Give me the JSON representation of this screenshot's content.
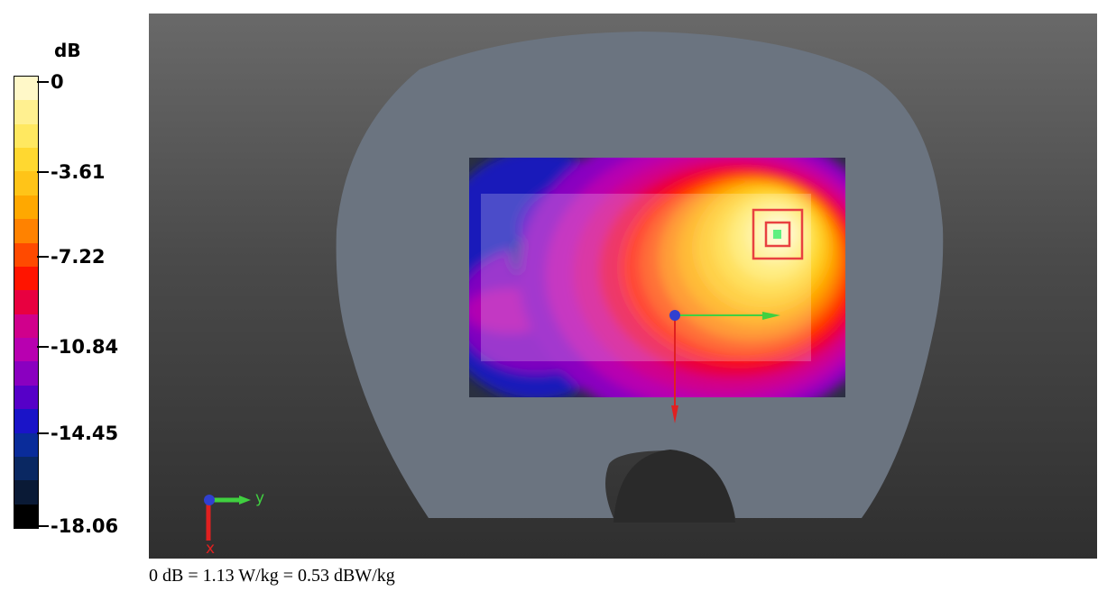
{
  "chart_data": {
    "type": "heatmap",
    "colorbar": {
      "unit": "dB",
      "ticks": [
        "0",
        "-3.61",
        "-7.22",
        "-10.84",
        "-14.45",
        "-18.06"
      ],
      "range": [
        -18.06,
        0
      ],
      "levels": [
        "#fff8c8",
        "#fff090",
        "#ffe860",
        "#ffd830",
        "#ffc418",
        "#ffa800",
        "#ff8200",
        "#ff4a00",
        "#ff1400",
        "#e80040",
        "#d0008c",
        "#b800b0",
        "#8a00c0",
        "#5600c8",
        "#1a14c8",
        "#0a2c9a",
        "#0a2862",
        "#0a1a36",
        "#000000"
      ]
    },
    "peak": {
      "value_db": 0
    },
    "axes": {
      "y_label": "y",
      "x_label": "x"
    }
  },
  "caption": "0 dB = 1.13 W/kg = 0.53 dBW/kg",
  "colors": {
    "background_top": "#696969",
    "background_bottom": "#2f2f2f",
    "phantom": "#6b7480",
    "scan_area_bg": "#2a3040",
    "marker": "#e84040",
    "axis_y": "#40d040",
    "axis_x": "#e02020",
    "origin": "#3040d0"
  }
}
